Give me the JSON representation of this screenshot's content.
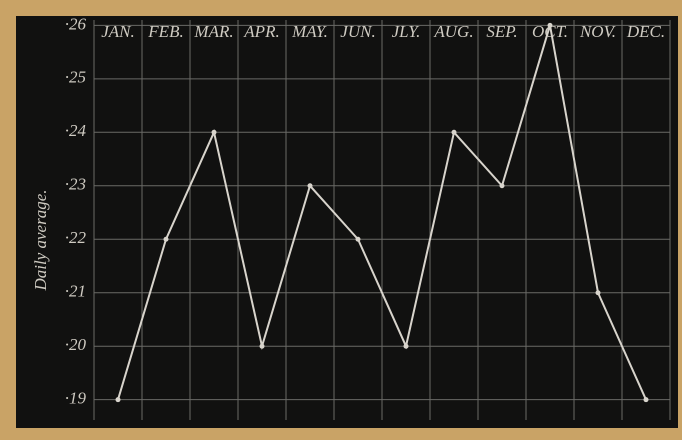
{
  "chart_data": {
    "type": "line",
    "y_label": "Daily average.",
    "categories": [
      "JAN.",
      "FEB.",
      "MAR.",
      "APR.",
      "MAY.",
      "JUN.",
      "JLY.",
      "AUG.",
      "SEP.",
      "OCT.",
      "NOV.",
      "DEC."
    ],
    "values": [
      0.19,
      0.22,
      0.24,
      0.2,
      0.23,
      0.22,
      0.2,
      0.24,
      0.23,
      0.26,
      0.21,
      0.19
    ],
    "color": "#d8d4cc",
    "ylim": [
      0.1862,
      0.261
    ],
    "yticks": [
      {
        "value": 0.19,
        "label": "·19"
      },
      {
        "value": 0.2,
        "label": "·20"
      },
      {
        "value": 0.21,
        "label": "·21"
      },
      {
        "value": 0.22,
        "label": "·22"
      },
      {
        "value": 0.23,
        "label": "·23"
      },
      {
        "value": 0.24,
        "label": "·24"
      },
      {
        "value": 0.25,
        "label": "·25"
      },
      {
        "value": 0.26,
        "label": "·26"
      }
    ],
    "grid": true
  }
}
